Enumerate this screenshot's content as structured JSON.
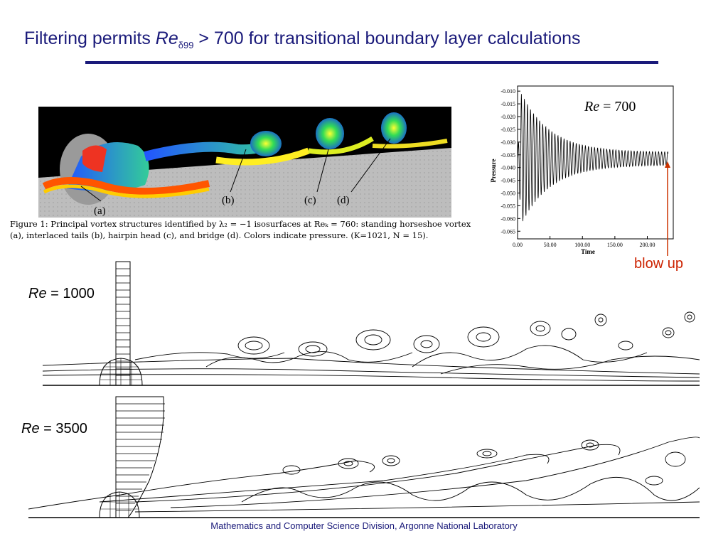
{
  "slide": {
    "title_pre": "Filtering permits ",
    "title_re": "Re",
    "title_sub": "δ99",
    "title_post": " > 700 for transitional boundary layer calculations",
    "footer": "Mathematics and Computer Science Division, Argonne National Laboratory"
  },
  "figure1": {
    "labels": [
      "(a)",
      "(b)",
      "(c)",
      "(d)"
    ],
    "caption": "Figure 1: Principal vortex structures identified by λ₂ = −1 isosurfaces at Reₖ = 760: standing horseshoe vortex (a), interlaced tails (b), hairpin head (c), and bridge (d). Colors indicate pressure. (K=1021, N = 15)."
  },
  "pressure_plot": {
    "label_re": "Re",
    "label_value": " = 700",
    "annotation": "blow up",
    "chart_data": {
      "type": "line",
      "title": "",
      "xlabel": "Time",
      "ylabel": "Pressure",
      "xlim": [
        0,
        240
      ],
      "ylim": [
        -0.068,
        -0.008
      ],
      "x_ticks": [
        "0.00",
        "50.00",
        "100.00",
        "150.00",
        "200.00"
      ],
      "y_ticks": [
        "-0.010",
        "-0.015",
        "-0.020",
        "-0.025",
        "-0.030",
        "-0.035",
        "-0.040",
        "-0.045",
        "-0.050",
        "-0.055",
        "-0.060",
        "-0.065"
      ],
      "signal": {
        "description_free": true,
        "start_time": 0,
        "end_time": 232,
        "mean": -0.0365,
        "initial_amplitude": 0.029,
        "final_amplitude": 0.0025,
        "period": 4.7
      }
    }
  },
  "fields": {
    "re1000": {
      "label_re": "Re",
      "label_value": " = 1000"
    },
    "re3500": {
      "label_re": "Re",
      "label_value": " = 3500"
    }
  }
}
